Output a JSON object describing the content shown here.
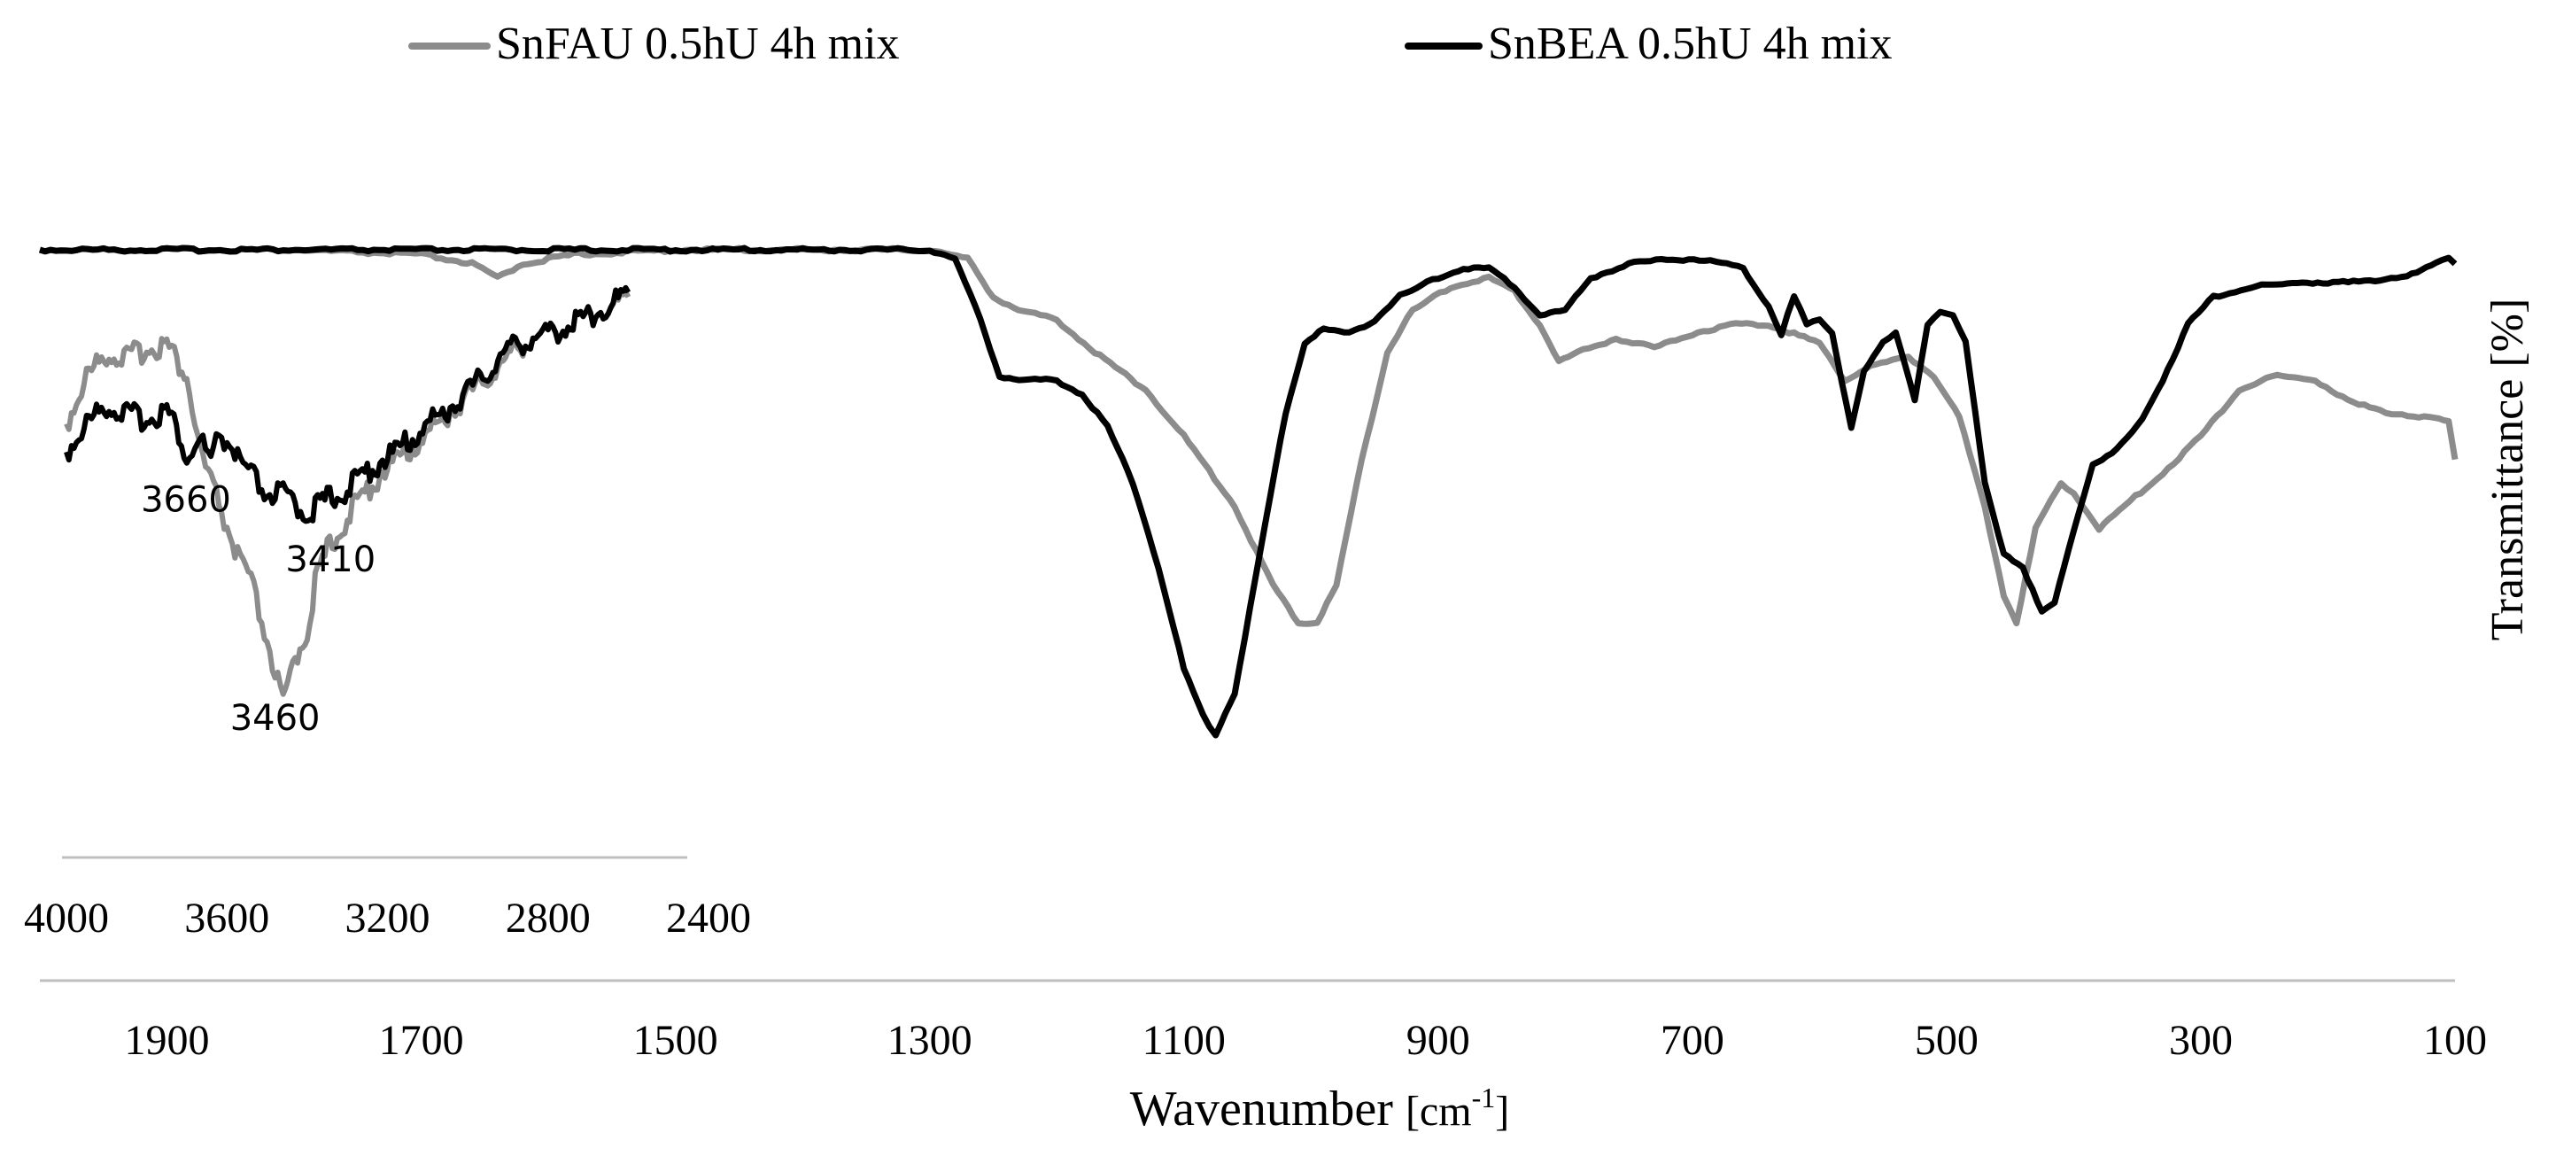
{
  "chart_data": {
    "type": "line",
    "title": "",
    "xlabel_main": "Wavenumber",
    "xlabel_unit_prefix": "[cm",
    "xlabel_unit_sup": "-1",
    "xlabel_unit_suffix": "]",
    "ylabel": "Transmittance  [%]",
    "xlim": [
      2000,
      100
    ],
    "xticks": [
      1900,
      1700,
      1500,
      1300,
      1100,
      900,
      700,
      500,
      300,
      100
    ],
    "legend": {
      "placement": "top",
      "entries": [
        {
          "label": "SnFAU 0.5hU 4h mix",
          "color": "#8c8c8c"
        },
        {
          "label": "SnBEA 0.5hU 4h mix",
          "color": "#000000"
        }
      ]
    },
    "series": [
      {
        "name": "SnFAU 0.5hU 4h mix",
        "color": "#8c8c8c",
        "points": [
          [
            2000,
            0.0
          ],
          [
            1900,
            0.0
          ],
          [
            1800,
            0.0
          ],
          [
            1700,
            0.01
          ],
          [
            1660,
            0.03
          ],
          [
            1640,
            0.06
          ],
          [
            1620,
            0.03
          ],
          [
            1580,
            0.01
          ],
          [
            1500,
            0.0
          ],
          [
            1400,
            0.0
          ],
          [
            1300,
            0.0
          ],
          [
            1270,
            0.02
          ],
          [
            1250,
            0.1
          ],
          [
            1230,
            0.13
          ],
          [
            1200,
            0.15
          ],
          [
            1170,
            0.22
          ],
          [
            1130,
            0.3
          ],
          [
            1100,
            0.4
          ],
          [
            1060,
            0.55
          ],
          [
            1030,
            0.72
          ],
          [
            1010,
            0.8
          ],
          [
            995,
            0.8
          ],
          [
            980,
            0.72
          ],
          [
            960,
            0.45
          ],
          [
            940,
            0.22
          ],
          [
            920,
            0.13
          ],
          [
            890,
            0.08
          ],
          [
            860,
            0.06
          ],
          [
            840,
            0.09
          ],
          [
            820,
            0.16
          ],
          [
            805,
            0.24
          ],
          [
            790,
            0.22
          ],
          [
            760,
            0.19
          ],
          [
            730,
            0.21
          ],
          [
            700,
            0.18
          ],
          [
            670,
            0.16
          ],
          [
            640,
            0.16
          ],
          [
            620,
            0.18
          ],
          [
            600,
            0.2
          ],
          [
            580,
            0.28
          ],
          [
            560,
            0.25
          ],
          [
            530,
            0.23
          ],
          [
            510,
            0.27
          ],
          [
            490,
            0.36
          ],
          [
            470,
            0.55
          ],
          [
            455,
            0.74
          ],
          [
            445,
            0.8
          ],
          [
            430,
            0.6
          ],
          [
            410,
            0.5
          ],
          [
            400,
            0.52
          ],
          [
            380,
            0.6
          ],
          [
            360,
            0.55
          ],
          [
            330,
            0.48
          ],
          [
            300,
            0.4
          ],
          [
            270,
            0.3
          ],
          [
            240,
            0.27
          ],
          [
            210,
            0.28
          ],
          [
            180,
            0.33
          ],
          [
            150,
            0.35
          ],
          [
            120,
            0.36
          ],
          [
            105,
            0.37
          ],
          [
            100,
            0.45
          ]
        ]
      },
      {
        "name": "SnBEA 0.5hU 4h mix",
        "color": "#000000",
        "points": [
          [
            2000,
            0.0
          ],
          [
            1900,
            0.0
          ],
          [
            1800,
            0.0
          ],
          [
            1700,
            0.0
          ],
          [
            1600,
            0.0
          ],
          [
            1500,
            0.0
          ],
          [
            1400,
            0.0
          ],
          [
            1300,
            0.0
          ],
          [
            1280,
            0.02
          ],
          [
            1260,
            0.15
          ],
          [
            1245,
            0.27
          ],
          [
            1230,
            0.28
          ],
          [
            1200,
            0.28
          ],
          [
            1180,
            0.31
          ],
          [
            1160,
            0.38
          ],
          [
            1140,
            0.5
          ],
          [
            1120,
            0.68
          ],
          [
            1100,
            0.9
          ],
          [
            1085,
            1.0
          ],
          [
            1075,
            1.04
          ],
          [
            1060,
            0.95
          ],
          [
            1040,
            0.65
          ],
          [
            1020,
            0.35
          ],
          [
            1005,
            0.2
          ],
          [
            990,
            0.17
          ],
          [
            970,
            0.18
          ],
          [
            950,
            0.15
          ],
          [
            930,
            0.1
          ],
          [
            900,
            0.06
          ],
          [
            880,
            0.04
          ],
          [
            860,
            0.04
          ],
          [
            840,
            0.08
          ],
          [
            820,
            0.14
          ],
          [
            800,
            0.13
          ],
          [
            780,
            0.06
          ],
          [
            750,
            0.03
          ],
          [
            720,
            0.02
          ],
          [
            690,
            0.02
          ],
          [
            660,
            0.04
          ],
          [
            640,
            0.12
          ],
          [
            630,
            0.18
          ],
          [
            620,
            0.1
          ],
          [
            610,
            0.16
          ],
          [
            600,
            0.15
          ],
          [
            590,
            0.18
          ],
          [
            575,
            0.38
          ],
          [
            565,
            0.26
          ],
          [
            550,
            0.2
          ],
          [
            540,
            0.18
          ],
          [
            525,
            0.32
          ],
          [
            515,
            0.16
          ],
          [
            505,
            0.13
          ],
          [
            495,
            0.14
          ],
          [
            485,
            0.2
          ],
          [
            470,
            0.5
          ],
          [
            455,
            0.65
          ],
          [
            440,
            0.68
          ],
          [
            425,
            0.78
          ],
          [
            415,
            0.76
          ],
          [
            400,
            0.6
          ],
          [
            385,
            0.46
          ],
          [
            370,
            0.44
          ],
          [
            350,
            0.38
          ],
          [
            330,
            0.28
          ],
          [
            310,
            0.16
          ],
          [
            290,
            0.1
          ],
          [
            260,
            0.08
          ],
          [
            220,
            0.07
          ],
          [
            180,
            0.07
          ],
          [
            150,
            0.06
          ],
          [
            130,
            0.05
          ],
          [
            115,
            0.03
          ],
          [
            105,
            0.02
          ],
          [
            100,
            0.03
          ]
        ]
      }
    ],
    "inset": {
      "type": "line",
      "xlim": [
        4000,
        2400
      ],
      "xticks": [
        4000,
        3600,
        3200,
        2800,
        2400
      ],
      "annotations": [
        {
          "text": "3660",
          "x": 3660,
          "y": 0.41
        },
        {
          "text": "3410",
          "x": 3410,
          "y": 0.5
        },
        {
          "text": "3460",
          "x": 3460,
          "y": 0.8
        }
      ],
      "series": [
        {
          "name": "SnFAU 0.5hU 4h mix",
          "color": "#8c8c8c",
          "points": [
            [
              4000,
              0.28
            ],
            [
              3950,
              0.18
            ],
            [
              3900,
              0.13
            ],
            [
              3850,
              0.14
            ],
            [
              3800,
              0.12
            ],
            [
              3750,
              0.11
            ],
            [
              3700,
              0.18
            ],
            [
              3680,
              0.28
            ],
            [
              3660,
              0.36
            ],
            [
              3620,
              0.45
            ],
            [
              3580,
              0.55
            ],
            [
              3540,
              0.62
            ],
            [
              3500,
              0.74
            ],
            [
              3460,
              0.88
            ],
            [
              3430,
              0.78
            ],
            [
              3400,
              0.72
            ],
            [
              3380,
              0.62
            ],
            [
              3350,
              0.55
            ],
            [
              3300,
              0.48
            ],
            [
              3250,
              0.42
            ],
            [
              3200,
              0.37
            ],
            [
              3150,
              0.34
            ],
            [
              3100,
              0.3
            ],
            [
              3050,
              0.26
            ],
            [
              3000,
              0.22
            ],
            [
              2950,
              0.18
            ],
            [
              2900,
              0.14
            ],
            [
              2850,
              0.1
            ],
            [
              2800,
              0.09
            ],
            [
              2750,
              0.07
            ],
            [
              2700,
              0.05
            ],
            [
              2650,
              0.03
            ],
            [
              2600,
              0.01
            ]
          ]
        },
        {
          "name": "SnBEA 0.5hU 4h mix",
          "color": "#000000",
          "points": [
            [
              4000,
              0.34
            ],
            [
              3950,
              0.28
            ],
            [
              3900,
              0.24
            ],
            [
              3850,
              0.26
            ],
            [
              3800,
              0.27
            ],
            [
              3750,
              0.25
            ],
            [
              3720,
              0.3
            ],
            [
              3700,
              0.36
            ],
            [
              3680,
              0.33
            ],
            [
              3660,
              0.32
            ],
            [
              3640,
              0.37
            ],
            [
              3620,
              0.3
            ],
            [
              3600,
              0.32
            ],
            [
              3580,
              0.34
            ],
            [
              3560,
              0.38
            ],
            [
              3540,
              0.39
            ],
            [
              3500,
              0.43
            ],
            [
              3460,
              0.43
            ],
            [
              3430,
              0.45
            ],
            [
              3410,
              0.47
            ],
            [
              3380,
              0.46
            ],
            [
              3350,
              0.44
            ],
            [
              3300,
              0.42
            ],
            [
              3250,
              0.38
            ],
            [
              3200,
              0.35
            ],
            [
              3150,
              0.32
            ],
            [
              3100,
              0.28
            ],
            [
              3050,
              0.25
            ],
            [
              3000,
              0.21
            ],
            [
              2950,
              0.17
            ],
            [
              2900,
              0.12
            ],
            [
              2850,
              0.1
            ],
            [
              2800,
              0.09
            ],
            [
              2750,
              0.07
            ],
            [
              2700,
              0.05
            ],
            [
              2650,
              0.03
            ],
            [
              2600,
              0.0
            ]
          ]
        }
      ]
    }
  }
}
